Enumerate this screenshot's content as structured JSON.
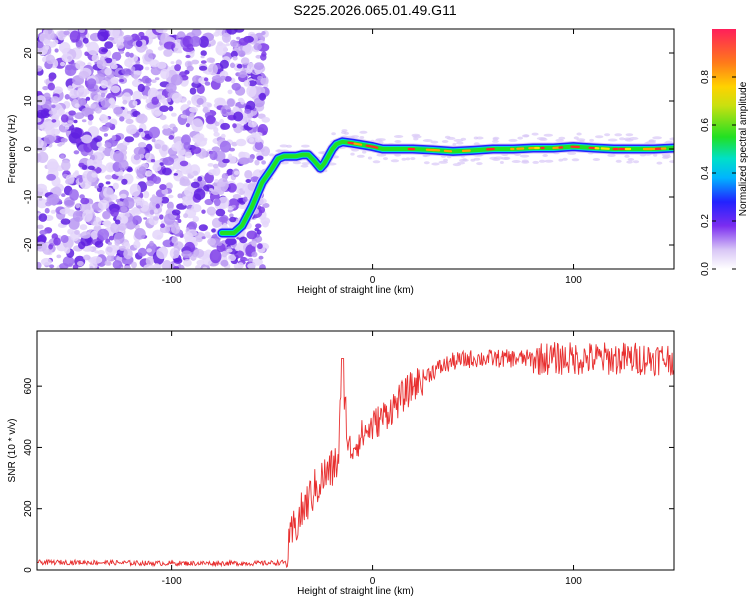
{
  "title": "S225.2026.065.01.49.G11",
  "chart_data": [
    {
      "type": "heatmap",
      "title": "S225.2026.065.01.49.G11",
      "xlabel": "Height of straight line (km)",
      "ylabel": "Frequency (Hz)",
      "xlim": [
        -167,
        150
      ],
      "ylim": [
        -25,
        25
      ],
      "xticks": [
        -100,
        0,
        100
      ],
      "yticks": [
        -20,
        -10,
        0,
        10,
        20
      ],
      "colorbar": {
        "label": "Normalized spectral amplitude",
        "range": [
          0,
          1
        ],
        "ticks": [
          0.0,
          0.2,
          0.4,
          0.6,
          0.8
        ]
      },
      "signal_track": {
        "x": [
          -75,
          -69,
          -65,
          -60,
          -55,
          -50,
          -47,
          -44,
          -41,
          -38,
          -35,
          -32,
          -29,
          -26,
          -24,
          -22,
          -20,
          -18,
          -15,
          -10,
          0,
          5,
          10,
          20,
          30,
          40,
          50,
          60,
          70,
          80,
          90,
          100,
          110,
          120,
          130,
          140,
          150
        ],
        "y": [
          -17.5,
          -17.5,
          -16,
          -12,
          -7,
          -4,
          -2,
          -1.5,
          -1.5,
          -1.5,
          -1.2,
          -1.2,
          -2.5,
          -4,
          -3,
          -1.5,
          0,
          1,
          1.5,
          1.2,
          0.5,
          0,
          0,
          0,
          -0.2,
          -0.5,
          -0.3,
          0,
          0,
          0.2,
          0.2,
          0.5,
          0.2,
          0,
          0,
          0,
          0.2
        ]
      },
      "noise_region_x": [
        -167,
        -53
      ]
    },
    {
      "type": "line",
      "xlabel": "Height of straight line (km)",
      "ylabel": "SNR (10 * v/v)",
      "xlim": [
        -167,
        150
      ],
      "ylim": [
        0,
        780
      ],
      "xticks": [
        -100,
        0,
        100
      ],
      "yticks": [
        0,
        200,
        400,
        600
      ],
      "color": "#e83030",
      "series": [
        {
          "x": [
            -167,
            -140,
            -110,
            -80,
            -55,
            -43,
            -40,
            -35,
            -30,
            -25,
            -20,
            -17,
            -15,
            -12,
            -10,
            -5,
            0,
            10,
            20,
            30,
            40,
            50,
            60,
            70,
            80,
            90,
            100,
            110,
            120,
            130,
            140,
            150
          ],
          "y": [
            25,
            25,
            22,
            22,
            22,
            25,
            120,
            190,
            250,
            300,
            330,
            360,
            690,
            380,
            400,
            440,
            470,
            530,
            600,
            650,
            680,
            690,
            690,
            690,
            690,
            690,
            690,
            690,
            690,
            690,
            690,
            690
          ]
        }
      ]
    }
  ]
}
